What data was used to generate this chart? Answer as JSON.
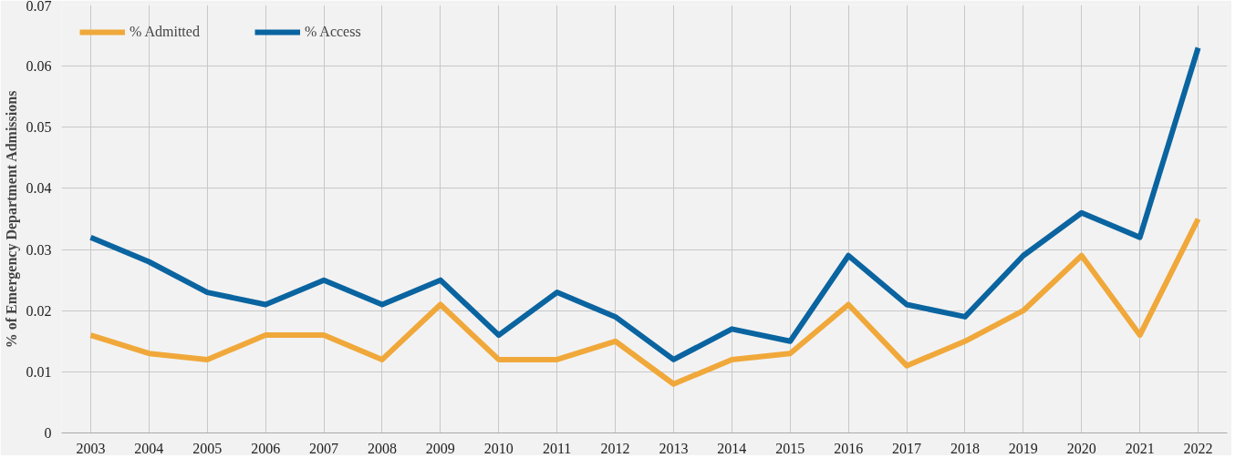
{
  "chart_data": {
    "type": "line",
    "ylabel": "% of Emergency Department Admissions",
    "categories": [
      "2003",
      "2004",
      "2005",
      "2006",
      "2007",
      "2008",
      "2009",
      "2010",
      "2011",
      "2012",
      "2013",
      "2014",
      "2015",
      "2016",
      "2017",
      "2018",
      "2019",
      "2020",
      "2021",
      "2022"
    ],
    "series": [
      {
        "name": "% Admitted",
        "color": "#f0a83a",
        "values": [
          0.016,
          0.013,
          0.012,
          0.016,
          0.016,
          0.012,
          0.021,
          0.012,
          0.012,
          0.015,
          0.008,
          0.012,
          0.013,
          0.021,
          0.011,
          0.015,
          0.02,
          0.029,
          0.016,
          0.035
        ]
      },
      {
        "name": "% Access",
        "color": "#0a64a0",
        "values": [
          0.032,
          0.028,
          0.023,
          0.021,
          0.025,
          0.021,
          0.025,
          0.016,
          0.023,
          0.019,
          0.012,
          0.017,
          0.015,
          0.029,
          0.021,
          0.019,
          0.029,
          0.036,
          0.032,
          0.063
        ]
      }
    ],
    "ylim": [
      0,
      0.07
    ],
    "yticks": [
      0,
      0.01,
      0.02,
      0.03,
      0.04,
      0.05,
      0.06,
      0.07
    ],
    "grid": true,
    "legend": "top left",
    "marker": "none",
    "line_style": "solid"
  }
}
